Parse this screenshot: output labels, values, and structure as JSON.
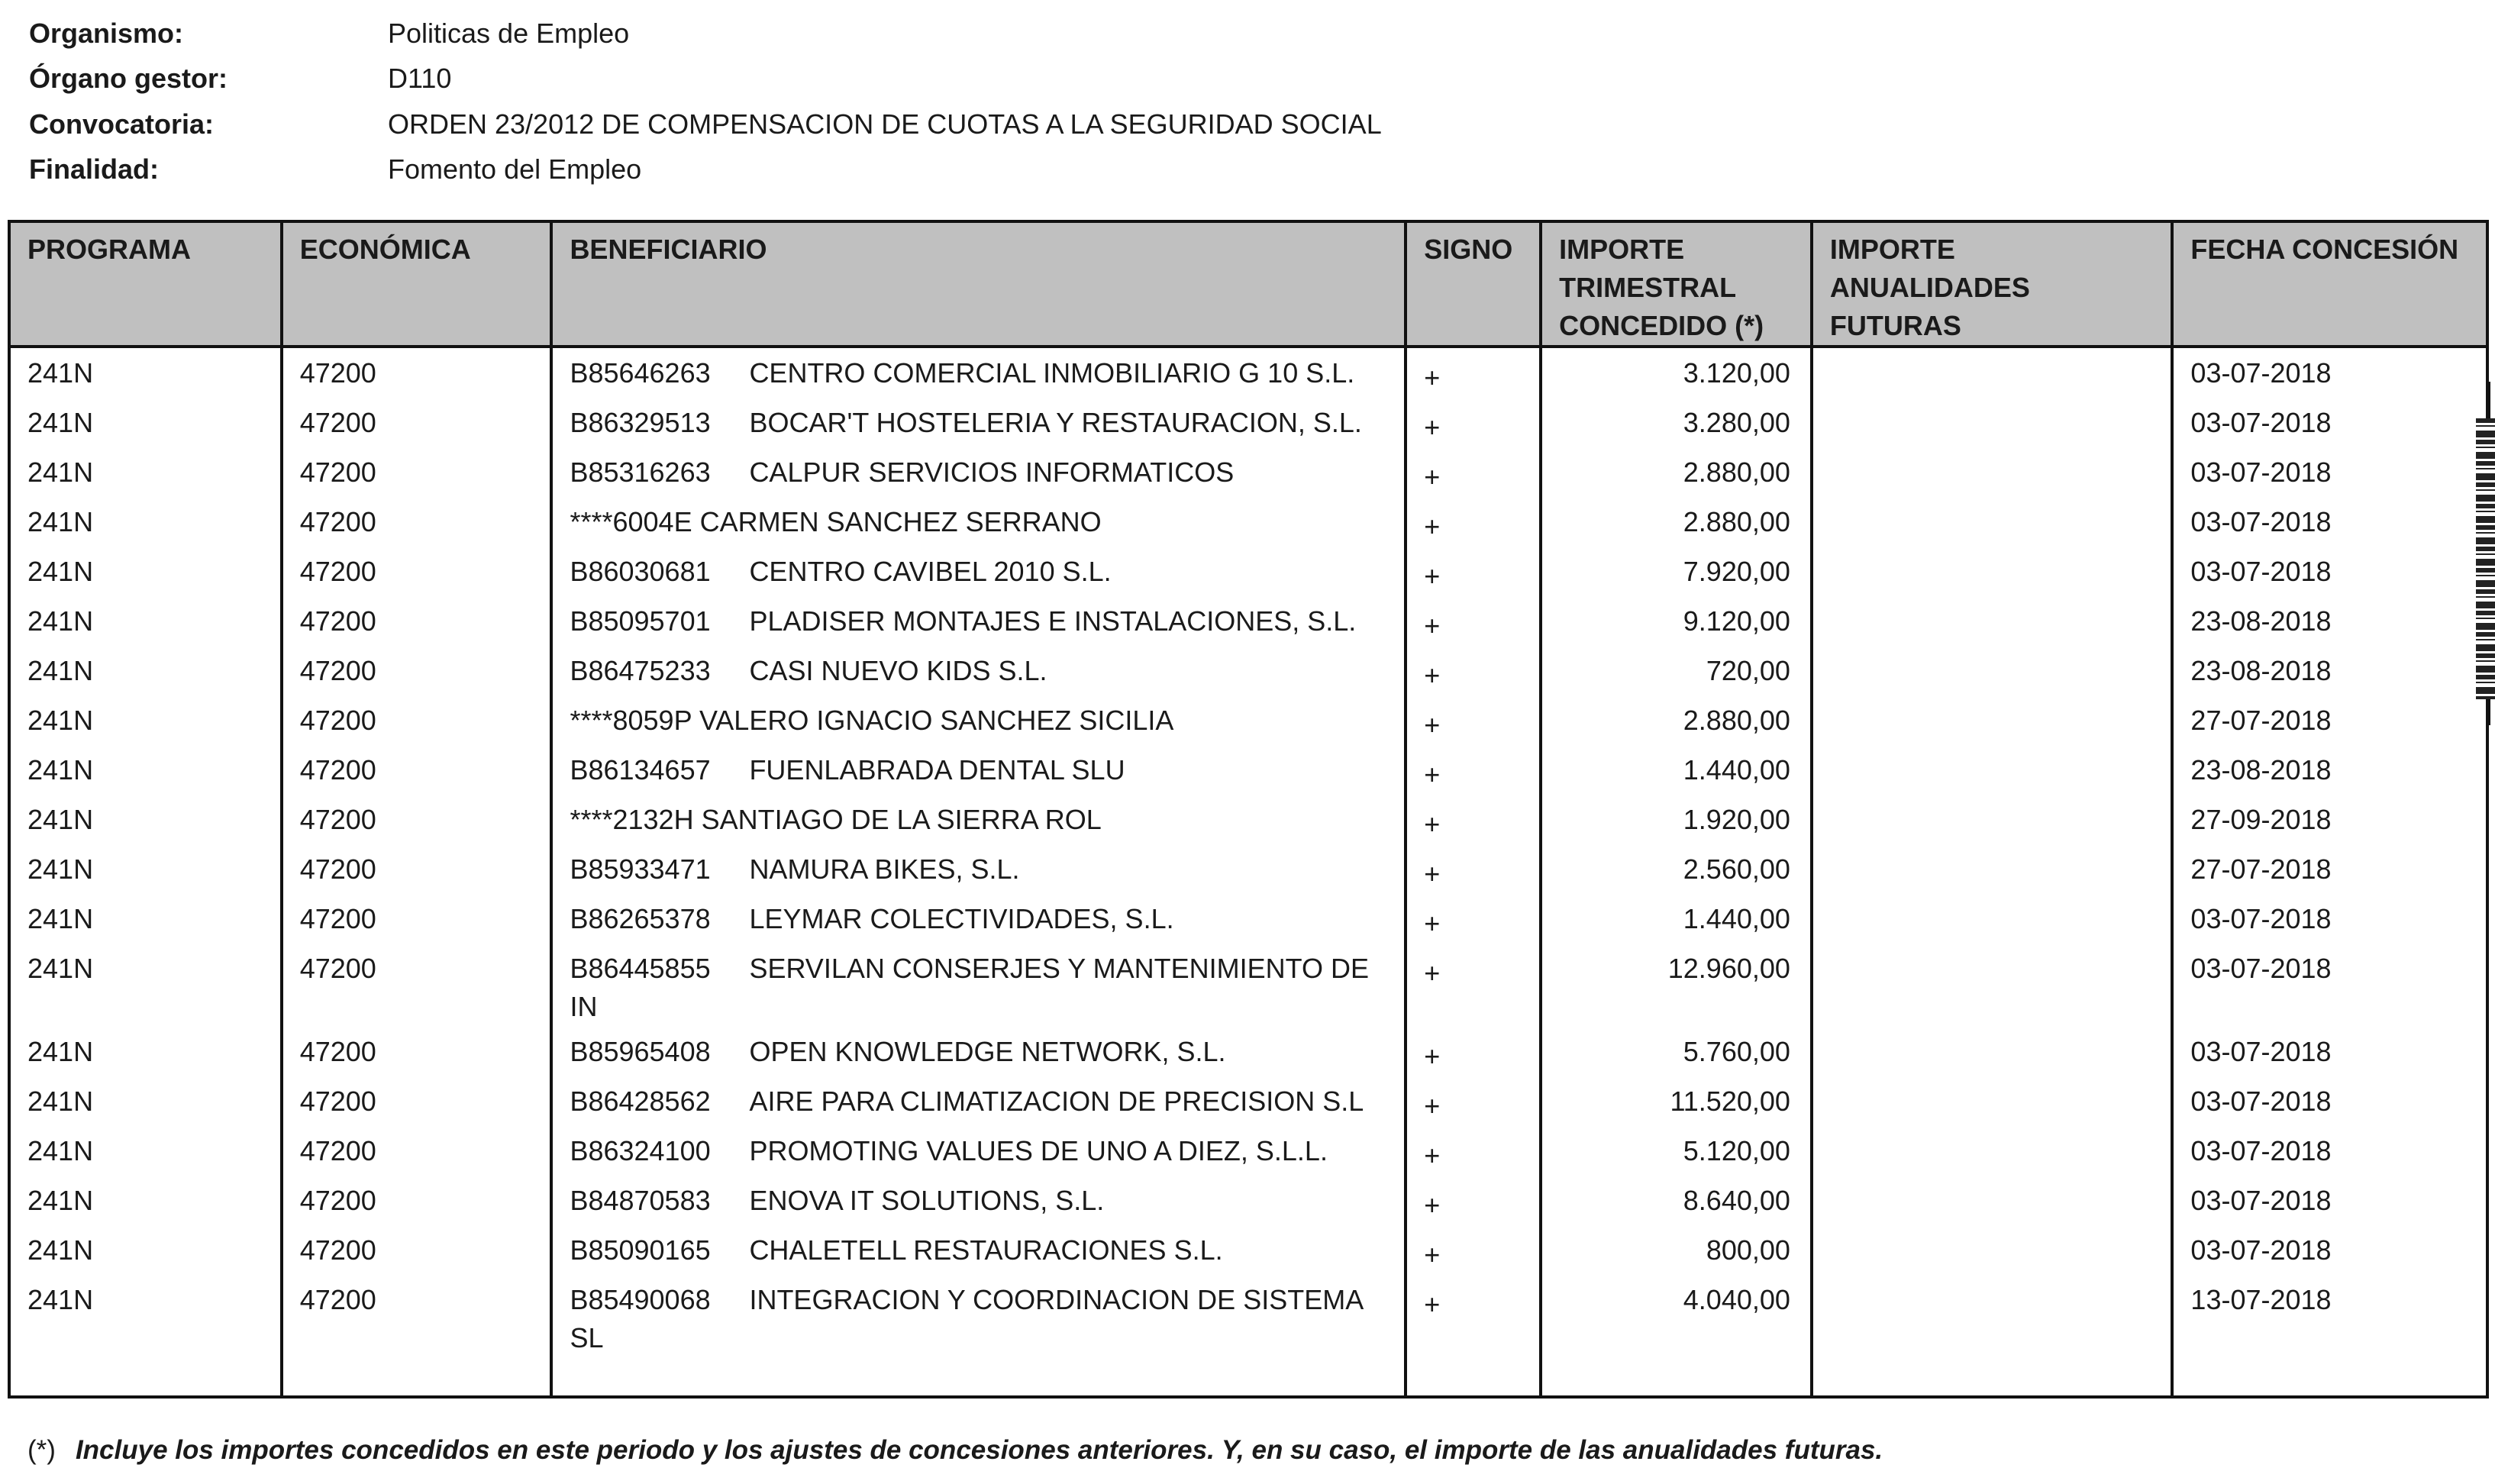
{
  "header": {
    "fields": [
      {
        "label": "Organismo:",
        "value": "Politicas de Empleo"
      },
      {
        "label": "Órgano gestor:",
        "value": "D110"
      },
      {
        "label": "Convocatoria:",
        "value": "ORDEN 23/2012 DE COMPENSACION DE CUOTAS A LA SEGURIDAD SOCIAL"
      },
      {
        "label": "Finalidad:",
        "value": "Fomento del Empleo"
      }
    ]
  },
  "table": {
    "columns": [
      "PROGRAMA",
      "ECONÓMICA",
      "BENEFICIARIO",
      "SIGNO",
      "IMPORTE TRIMESTRAL CONCEDIDO (*)",
      "IMPORTE ANUALIDADES FUTURAS",
      "FECHA CONCESIÓN"
    ],
    "rows": [
      {
        "programa": "241N",
        "economica": "47200",
        "nif": "B85646263",
        "nombre": "CENTRO COMERCIAL INMOBILIARIO G 10 S.L.",
        "signo": "+",
        "importe": "3.120,00",
        "futuras": "",
        "fecha": "03-07-2018"
      },
      {
        "programa": "241N",
        "economica": "47200",
        "nif": "B86329513",
        "nombre": "BOCAR'T HOSTELERIA Y RESTAURACION, S.L.",
        "signo": "+",
        "importe": "3.280,00",
        "futuras": "",
        "fecha": "03-07-2018"
      },
      {
        "programa": "241N",
        "economica": "47200",
        "nif": "B85316263",
        "nombre": "CALPUR SERVICIOS INFORMATICOS",
        "signo": "+",
        "importe": "2.880,00",
        "futuras": "",
        "fecha": "03-07-2018"
      },
      {
        "programa": "241N",
        "economica": "47200",
        "nif": "****6004E",
        "nombre": "CARMEN SANCHEZ SERRANO",
        "signo": "+",
        "importe": "2.880,00",
        "futuras": "",
        "fecha": "03-07-2018"
      },
      {
        "programa": "241N",
        "economica": "47200",
        "nif": "B86030681",
        "nombre": "CENTRO CAVIBEL 2010 S.L.",
        "signo": "+",
        "importe": "7.920,00",
        "futuras": "",
        "fecha": "03-07-2018"
      },
      {
        "programa": "241N",
        "economica": "47200",
        "nif": "B85095701",
        "nombre": "PLADISER MONTAJES E INSTALACIONES, S.L.",
        "signo": "+",
        "importe": "9.120,00",
        "futuras": "",
        "fecha": "23-08-2018"
      },
      {
        "programa": "241N",
        "economica": "47200",
        "nif": "B86475233",
        "nombre": "CASI NUEVO KIDS S.L.",
        "signo": "+",
        "importe": "720,00",
        "futuras": "",
        "fecha": "23-08-2018"
      },
      {
        "programa": "241N",
        "economica": "47200",
        "nif": "****8059P",
        "nombre": "VALERO IGNACIO SANCHEZ SICILIA",
        "signo": "+",
        "importe": "2.880,00",
        "futuras": "",
        "fecha": "27-07-2018"
      },
      {
        "programa": "241N",
        "economica": "47200",
        "nif": "B86134657",
        "nombre": "FUENLABRADA DENTAL SLU",
        "signo": "+",
        "importe": "1.440,00",
        "futuras": "",
        "fecha": "23-08-2018"
      },
      {
        "programa": "241N",
        "economica": "47200",
        "nif": "****2132H",
        "nombre": "SANTIAGO DE LA SIERRA ROL",
        "signo": "+",
        "importe": "1.920,00",
        "futuras": "",
        "fecha": "27-09-2018"
      },
      {
        "programa": "241N",
        "economica": "47200",
        "nif": "B85933471",
        "nombre": "NAMURA BIKES, S.L.",
        "signo": "+",
        "importe": "2.560,00",
        "futuras": "",
        "fecha": "27-07-2018"
      },
      {
        "programa": "241N",
        "economica": "47200",
        "nif": "B86265378",
        "nombre": "LEYMAR COLECTIVIDADES, S.L.",
        "signo": "+",
        "importe": "1.440,00",
        "futuras": "",
        "fecha": "03-07-2018"
      },
      {
        "programa": "241N",
        "economica": "47200",
        "nif": "B86445855",
        "nombre": "SERVILAN CONSERJES Y MANTENIMIENTO DE IN",
        "signo": "+",
        "importe": "12.960,00",
        "futuras": "",
        "fecha": "03-07-2018"
      },
      {
        "programa": "241N",
        "economica": "47200",
        "nif": "B85965408",
        "nombre": "OPEN KNOWLEDGE NETWORK, S.L.",
        "signo": "+",
        "importe": "5.760,00",
        "futuras": "",
        "fecha": "03-07-2018"
      },
      {
        "programa": "241N",
        "economica": "47200",
        "nif": "B86428562",
        "nombre": "AIRE PARA CLIMATIZACION DE PRECISION S.L",
        "signo": "+",
        "importe": "11.520,00",
        "futuras": "",
        "fecha": "03-07-2018"
      },
      {
        "programa": "241N",
        "economica": "47200",
        "nif": "B86324100",
        "nombre": "PROMOTING VALUES DE UNO A DIEZ, S.L.L.",
        "signo": "+",
        "importe": "5.120,00",
        "futuras": "",
        "fecha": "03-07-2018"
      },
      {
        "programa": "241N",
        "economica": "47200",
        "nif": "B84870583",
        "nombre": "ENOVA IT SOLUTIONS, S.L.",
        "signo": "+",
        "importe": "8.640,00",
        "futuras": "",
        "fecha": "03-07-2018"
      },
      {
        "programa": "241N",
        "economica": "47200",
        "nif": "B85090165",
        "nombre": "CHALETELL RESTAURACIONES S.L.",
        "signo": "+",
        "importe": "800,00",
        "futuras": "",
        "fecha": "03-07-2018"
      },
      {
        "programa": "241N",
        "economica": "47200",
        "nif": "B85490068",
        "nombre": "INTEGRACION Y COORDINACION DE SISTEMA SL",
        "signo": "+",
        "importe": "4.040,00",
        "futuras": "",
        "fecha": "13-07-2018"
      }
    ]
  },
  "footnote": {
    "mark": "(*)",
    "text": "Incluye los importes concedidos en este periodo y los ajustes de concesiones anteriores. Y, en su caso, el importe de las anualidades futuras."
  }
}
